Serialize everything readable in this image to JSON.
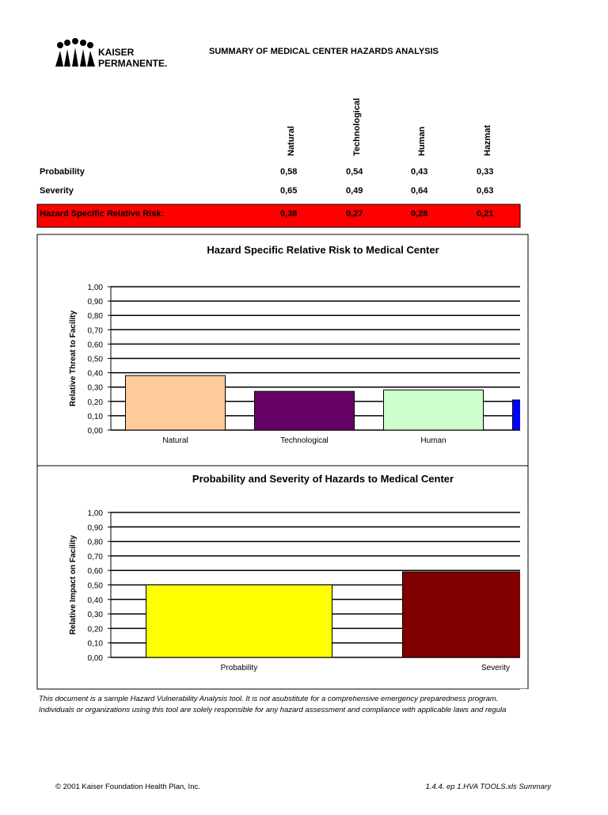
{
  "header": {
    "company": [
      "KAISER",
      "PERMANENTE."
    ],
    "title": "SUMMARY OF MEDICAL CENTER HAZARDS ANALYSIS"
  },
  "table": {
    "columns": [
      "Natural",
      "Technological",
      "Human",
      "Hazmat"
    ],
    "rows": [
      {
        "label": "Probability",
        "values": [
          "0,58",
          "0,54",
          "0,43",
          "0,33"
        ]
      },
      {
        "label": "Severity",
        "values": [
          "0,65",
          "0,49",
          "0,64",
          "0,63"
        ]
      },
      {
        "label": "Hazard Specific Relative Risk:",
        "values": [
          "0,38",
          "0,27",
          "0,28",
          "0,21"
        ]
      }
    ]
  },
  "chart_data": [
    {
      "type": "bar",
      "title": "Hazard Specific Relative Risk to Medical Center",
      "y_label": "Relative Threat to Facility",
      "categories": [
        "Natural",
        "Technological",
        "Human",
        null
      ],
      "values": [
        0.38,
        0.27,
        0.28,
        0.21
      ],
      "colors": [
        "#ffcc99",
        "#660066",
        "#ccffcc",
        "#0000ff"
      ],
      "ylim": [
        0,
        1
      ],
      "grid": true,
      "yticks": [
        {
          "value": 0,
          "label": "0,00"
        },
        {
          "value": 0.1,
          "label": "0,10"
        },
        {
          "value": 0.2,
          "label": "0,20"
        },
        {
          "value": 0.3,
          "label": "0,30"
        },
        {
          "value": 0.4,
          "label": "0,40"
        },
        {
          "value": 0.5,
          "label": "0,50"
        },
        {
          "value": 0.6,
          "label": "0,60"
        },
        {
          "value": 0.7,
          "label": "0,70"
        },
        {
          "value": 0.8,
          "label": "0,80"
        },
        {
          "value": 0.9,
          "label": "0,90"
        },
        {
          "value": 1,
          "label": "1,00"
        }
      ]
    },
    {
      "type": "bar",
      "title": "Probability and Severity of Hazards to Medical Center",
      "y_label": "Relative Impact on Facility",
      "categories": [
        "Probability",
        "Severity"
      ],
      "values": [
        0.5,
        0.59
      ],
      "colors": [
        "#ffff00",
        "#800000"
      ],
      "ylim": [
        0,
        1
      ],
      "grid": true,
      "yticks": [
        {
          "value": 0,
          "label": "0,00"
        },
        {
          "value": 0.1,
          "label": "0,10"
        },
        {
          "value": 0.2,
          "label": "0,20"
        },
        {
          "value": 0.3,
          "label": "0,30"
        },
        {
          "value": 0.4,
          "label": "0,40"
        },
        {
          "value": 0.5,
          "label": "0,50"
        },
        {
          "value": 0.6,
          "label": "0,60"
        },
        {
          "value": 0.7,
          "label": "0,70"
        },
        {
          "value": 0.8,
          "label": "0,80"
        },
        {
          "value": 0.9,
          "label": "0,90"
        },
        {
          "value": 1,
          "label": "1,00"
        }
      ]
    }
  ],
  "disclaimer": [
    "This document is a sample Hazard Vulnerability Analysis tool.  It is not asubstitute for a comprehensive emergency preparedness program.",
    "Individuals or organizations using this tool are solely responsible for any hazard assessment and compliance with applicable laws and regula"
  ],
  "footer": {
    "copyright": "© 2001 Kaiser Foundation Health Plan, Inc.",
    "file": "1.4.4. ep 1.HVA TOOLS.xls Summary"
  }
}
